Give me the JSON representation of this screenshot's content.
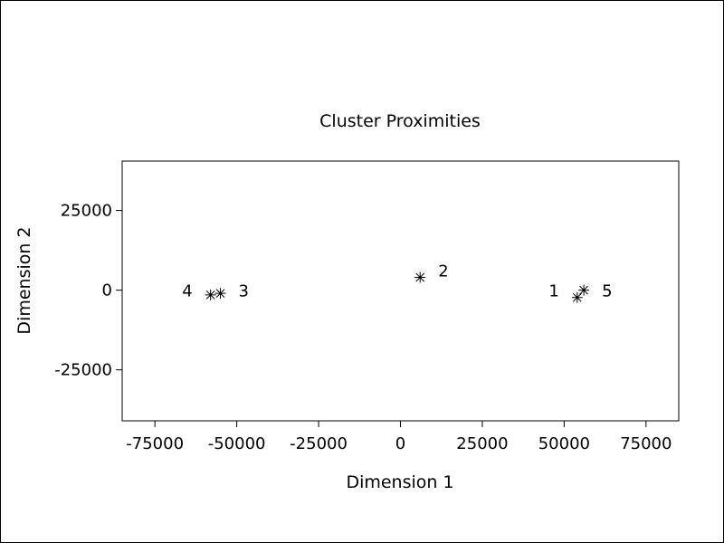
{
  "chart_data": {
    "type": "scatter",
    "title": "Cluster Proximities",
    "xlabel": "Dimension 1",
    "ylabel": "Dimension 2",
    "xlim": [
      -85000,
      85000
    ],
    "ylim": [
      -41000,
      40500
    ],
    "xticks": [
      -75000,
      -50000,
      -25000,
      0,
      25000,
      50000,
      75000
    ],
    "xtick_labels": [
      "-75000",
      "-50000",
      "-25000",
      "0",
      "25000",
      "50000",
      "75000"
    ],
    "yticks": [
      -25000,
      0,
      25000
    ],
    "ytick_labels": [
      "-25000",
      "0",
      "25000"
    ],
    "grid": false,
    "marker": "asterisk",
    "points": [
      {
        "label": "1",
        "x": 54000,
        "y": -2300
      },
      {
        "label": "2",
        "x": 6000,
        "y": 4000
      },
      {
        "label": "3",
        "x": -55000,
        "y": -1000
      },
      {
        "label": "4",
        "x": -58000,
        "y": -1500
      },
      {
        "label": "5",
        "x": 56000,
        "y": 0
      }
    ]
  }
}
